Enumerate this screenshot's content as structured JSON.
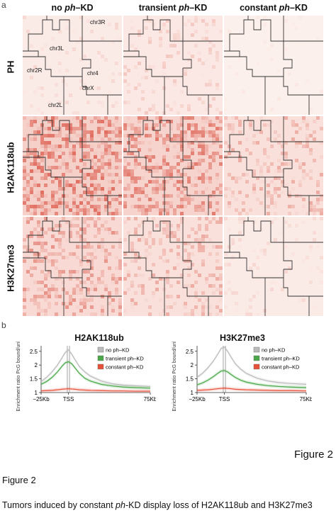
{
  "panel_letters": {
    "top": "a",
    "bottom": "b"
  },
  "columns": [
    {
      "pre": "no ",
      "ital": "ph",
      "post": "–KD"
    },
    {
      "pre": "transient ",
      "ital": "ph",
      "post": "–KD"
    },
    {
      "pre": "constant ",
      "ital": "ph",
      "post": "–KD"
    }
  ],
  "rows": [
    "PH",
    "H2AK118ub",
    "H3K27me3"
  ],
  "chromosomes": [
    "chr3R",
    "chr3L",
    "chr2R",
    "chr4",
    "chrX",
    "chr2L"
  ],
  "heat_colors": {
    "low": "#fdf3ef",
    "high": "#d63b2a"
  },
  "chart_data": [
    {
      "type": "line",
      "title": "H2AK118ub",
      "ylabel": "Enrichment ratio PcG bound/unbound",
      "x_ticks": [
        "−25Kb",
        "TSS",
        "75Kb"
      ],
      "y_ticks": [
        "1",
        "1.5",
        "2",
        "2.5"
      ],
      "ylim": [
        1,
        2.7
      ],
      "xlim": [
        -25,
        75
      ],
      "x": [
        -25,
        -20,
        -15,
        -10,
        -6,
        -3,
        0,
        3,
        6,
        10,
        15,
        20,
        30,
        40,
        50,
        60,
        75
      ],
      "series": [
        {
          "name": "no ph–KD",
          "color": "#bbbbbb",
          "values": [
            1.4,
            1.55,
            1.75,
            2.0,
            2.25,
            2.45,
            2.55,
            2.4,
            2.2,
            1.95,
            1.75,
            1.6,
            1.42,
            1.32,
            1.27,
            1.25,
            1.22
          ]
        },
        {
          "name": "transient ph–KD",
          "color": "#4aa84a",
          "values": [
            1.3,
            1.4,
            1.55,
            1.75,
            1.95,
            2.08,
            2.12,
            2.05,
            1.9,
            1.7,
            1.52,
            1.42,
            1.3,
            1.24,
            1.2,
            1.18,
            1.16
          ]
        },
        {
          "name": "constant ph–KD",
          "color": "#e8503a",
          "values": [
            1.06,
            1.07,
            1.08,
            1.1,
            1.12,
            1.13,
            1.14,
            1.13,
            1.12,
            1.1,
            1.09,
            1.08,
            1.07,
            1.06,
            1.06,
            1.05,
            1.05
          ]
        }
      ]
    },
    {
      "type": "line",
      "title": "H3K27me3",
      "ylabel": "Enrichment ratio PcG bound/unbound",
      "x_ticks": [
        "−25Kb",
        "TSS",
        "75Kb"
      ],
      "y_ticks": [
        "1",
        "1.5",
        "2",
        "2.5"
      ],
      "ylim": [
        1,
        2.7
      ],
      "xlim": [
        -25,
        75
      ],
      "x": [
        -25,
        -20,
        -15,
        -10,
        -6,
        -3,
        0,
        3,
        6,
        10,
        15,
        20,
        30,
        40,
        50,
        60,
        75
      ],
      "series": [
        {
          "name": "no ph–KD",
          "color": "#bbbbbb",
          "values": [
            1.55,
            1.7,
            1.9,
            2.15,
            2.4,
            2.6,
            2.65,
            2.5,
            2.3,
            2.05,
            1.85,
            1.7,
            1.52,
            1.42,
            1.36,
            1.33,
            1.3
          ]
        },
        {
          "name": "transient ph–KD",
          "color": "#4aa84a",
          "values": [
            1.28,
            1.35,
            1.45,
            1.58,
            1.7,
            1.78,
            1.8,
            1.75,
            1.66,
            1.55,
            1.45,
            1.38,
            1.3,
            1.25,
            1.22,
            1.2,
            1.18
          ]
        },
        {
          "name": "constant ph–KD",
          "color": "#e8503a",
          "values": [
            1.08,
            1.09,
            1.1,
            1.12,
            1.14,
            1.15,
            1.16,
            1.15,
            1.14,
            1.12,
            1.11,
            1.1,
            1.09,
            1.08,
            1.07,
            1.07,
            1.06
          ]
        }
      ]
    }
  ],
  "figure_label_right": "Figure 2",
  "caption_heading": "Figure 2",
  "caption_text": {
    "pre": "Tumors induced by constant ",
    "ital": "ph",
    "post": "-KD display loss of H2AK118ub and H3K27me3"
  }
}
